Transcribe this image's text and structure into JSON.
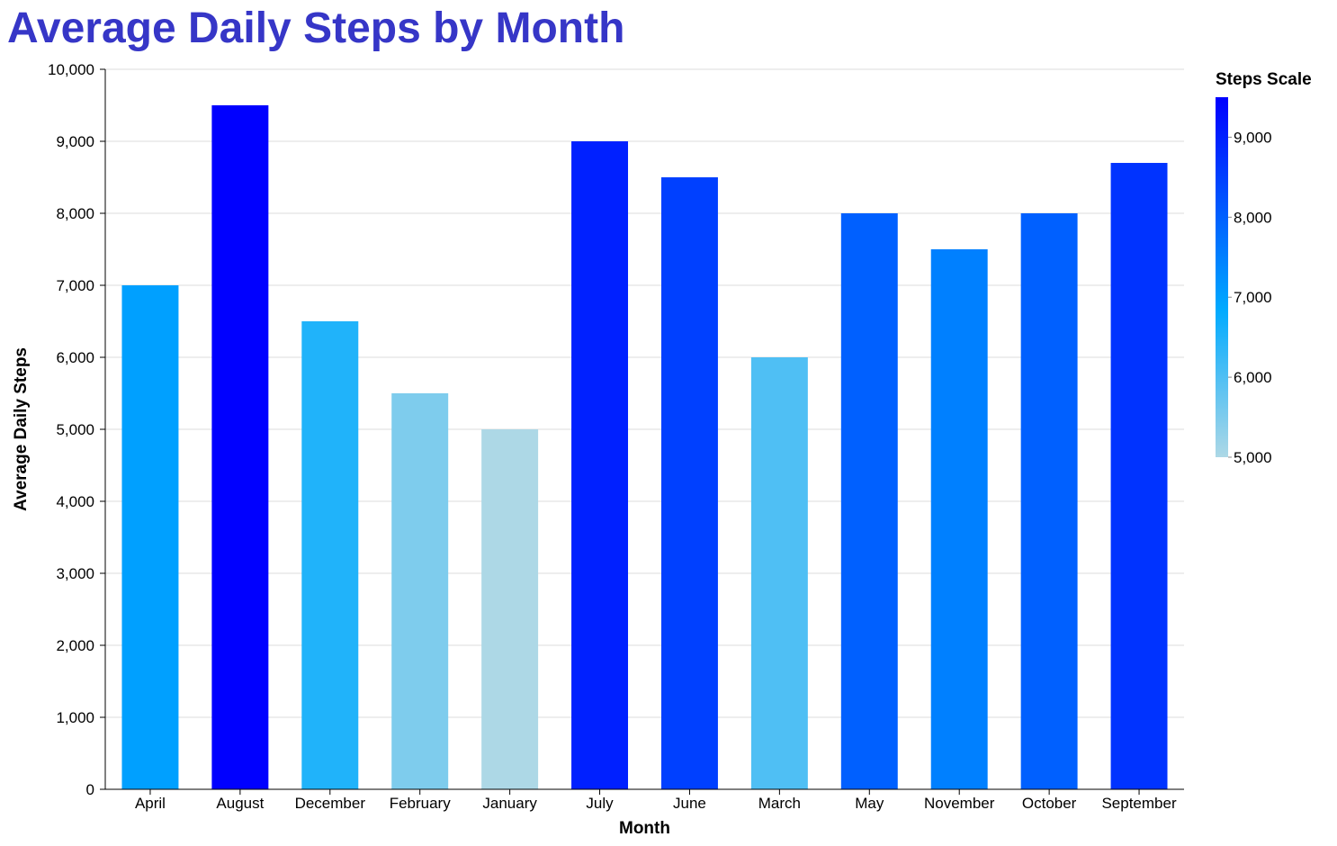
{
  "chart_data": {
    "type": "bar",
    "title": "Average Daily Steps by Month",
    "xlabel": "Month",
    "ylabel": "Average Daily Steps",
    "categories": [
      "April",
      "August",
      "December",
      "February",
      "January",
      "July",
      "June",
      "March",
      "May",
      "November",
      "October",
      "September"
    ],
    "values": [
      7000,
      9500,
      6500,
      5500,
      5000,
      9000,
      8500,
      6000,
      8000,
      7500,
      8000,
      8700
    ],
    "ylim": [
      0,
      10000
    ],
    "yticks": [
      0,
      1000,
      2000,
      3000,
      4000,
      5000,
      6000,
      7000,
      8000,
      9000,
      10000
    ],
    "ytick_labels": [
      "0",
      "1,000",
      "2,000",
      "3,000",
      "4,000",
      "5,000",
      "6,000",
      "7,000",
      "8,000",
      "9,000",
      "10,000"
    ],
    "grid": true,
    "legend": {
      "title": "Steps Scale",
      "position": "right",
      "range": [
        5000,
        9500
      ],
      "ticks": [
        5000,
        6000,
        7000,
        8000,
        9000
      ],
      "tick_labels": [
        "5,000",
        "6,000",
        "7,000",
        "8,000",
        "9,000"
      ]
    },
    "colors": {
      "title": "#3636C7",
      "scale": [
        "#ADD8E6",
        "#00AAFF",
        "#0000FF"
      ],
      "grid": "#dddddd",
      "axis": "#000000"
    }
  }
}
